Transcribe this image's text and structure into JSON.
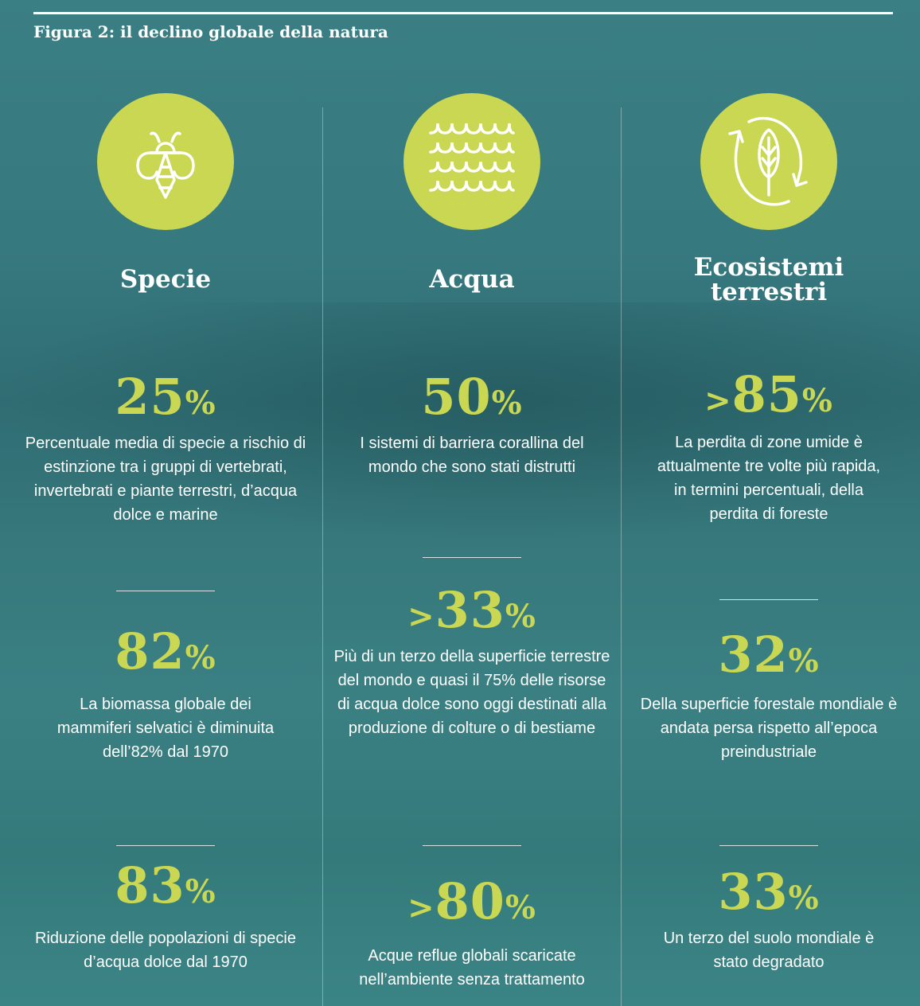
{
  "figure_title": "Figura 2: il declino globale della natura",
  "colors": {
    "background": "#367b80",
    "accent": "#c9d752"
  },
  "columns": [
    {
      "icon": "bee-icon",
      "title": "Specie",
      "stats": [
        {
          "prefix": "",
          "value": "25",
          "unit": "%",
          "text": "Percentuale media di specie a rischio di estinzione tra i gruppi di vertebrati, invertebrati e piante terrestri, d’acqua dolce e marine"
        },
        {
          "prefix": "",
          "value": "82",
          "unit": "%",
          "text": "La biomassa globale dei mammiferi selvatici è diminuita dell’82% dal 1970"
        },
        {
          "prefix": "",
          "value": "83",
          "unit": "%",
          "text": "Riduzione delle popolazioni di specie d’acqua dolce dal 1970"
        }
      ]
    },
    {
      "icon": "waves-icon",
      "title": "Acqua",
      "stats": [
        {
          "prefix": "",
          "value": "50",
          "unit": "%",
          "text": "I sistemi di barriera corallina del mondo che sono stati distrutti"
        },
        {
          "prefix": ">",
          "value": "33",
          "unit": "%",
          "text": "Più di un terzo della superficie terrestre del mondo e quasi il 75% delle risorse di acqua dolce sono oggi destinati alla produzione di colture o di bestiame"
        },
        {
          "prefix": ">",
          "value": "80",
          "unit": "%",
          "text": "Acque reflue globali scaricate nell’ambiente senza trattamento"
        }
      ]
    },
    {
      "icon": "leaf-cycle-icon",
      "title": "Ecosistemi terrestri",
      "stats": [
        {
          "prefix": ">",
          "value": "85",
          "unit": "%",
          "text": "La perdita di zone umide è attualmente tre volte più rapida, in termini percentuali, della perdita di foreste"
        },
        {
          "prefix": "",
          "value": "32",
          "unit": "%",
          "text": "Della superficie forestale mondiale è andata persa rispetto all’epoca preindustriale"
        },
        {
          "prefix": "",
          "value": "33",
          "unit": "%",
          "text": "Un terzo del suolo mondiale è stato degradato"
        }
      ]
    }
  ]
}
